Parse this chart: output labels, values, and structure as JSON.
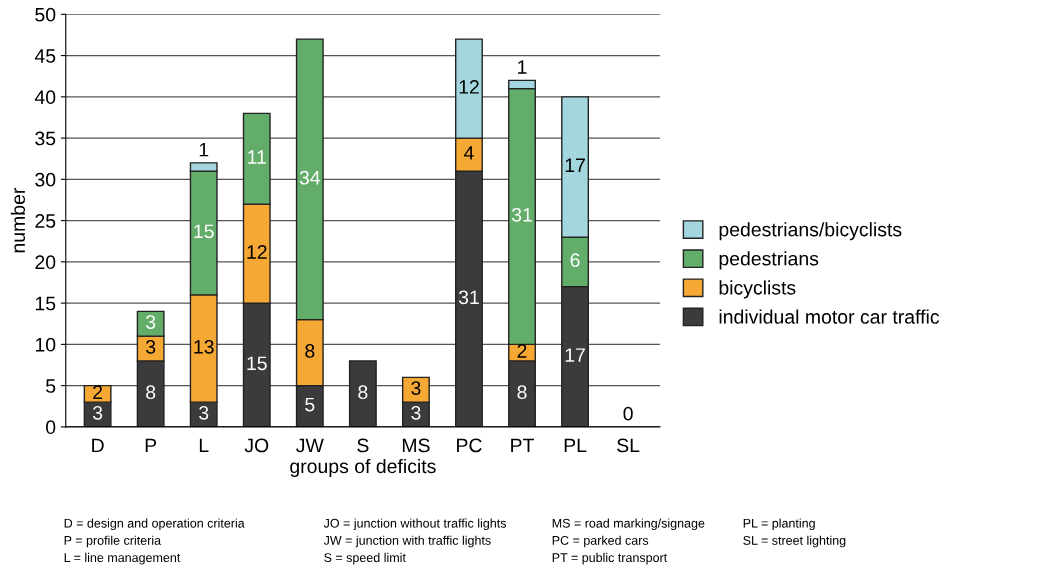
{
  "chart_data": {
    "type": "bar",
    "stacked": true,
    "xlabel": "groups of deficits",
    "ylabel": "number",
    "categories": [
      "D",
      "P",
      "L",
      "JO",
      "JW",
      "S",
      "MS",
      "PC",
      "PT",
      "PL",
      "SL"
    ],
    "series": [
      {
        "name": "individual motor car traffic",
        "color": "#3b3b3d",
        "values": [
          3,
          8,
          3,
          15,
          5,
          8,
          3,
          31,
          8,
          17,
          0
        ],
        "value_labels": [
          "3",
          "8",
          "3",
          "15",
          "5",
          "8",
          "3",
          "31",
          "8",
          "17",
          "0"
        ]
      },
      {
        "name": "bicyclists",
        "color": "#f5a833",
        "values": [
          2,
          3,
          13,
          12,
          8,
          0,
          3,
          4,
          2,
          0,
          0
        ],
        "value_labels": [
          "2",
          "3",
          "13",
          "12",
          "8",
          null,
          "3",
          "4",
          "2",
          null,
          null
        ]
      },
      {
        "name": "pedestrians",
        "color": "#62ad6a",
        "values": [
          0,
          3,
          15,
          11,
          34,
          0,
          0,
          0,
          31,
          6,
          0
        ],
        "value_labels": [
          null,
          "3",
          "15",
          "11",
          "34",
          null,
          null,
          null,
          "31",
          "6",
          null
        ]
      },
      {
        "name": "pedestrians/bicyclists",
        "color": "#a3d6de",
        "values": [
          0,
          0,
          1,
          0,
          0,
          0,
          0,
          12,
          1,
          17,
          0
        ],
        "value_labels": [
          null,
          null,
          "1",
          null,
          null,
          null,
          null,
          "12",
          "1",
          "17",
          null
        ]
      }
    ],
    "ylim": [
      0,
      50
    ],
    "yticks": [
      0,
      5,
      10,
      15,
      20,
      25,
      30,
      35,
      40,
      45,
      50
    ],
    "grid": "y",
    "legend": "right",
    "annotations": [
      "D = design and operation criteria",
      "P = profile criteria",
      "L = line management",
      "JO = junction without traffic lights",
      "JW = junction with traffic lights",
      "S = speed limit",
      "MS = road marking/signage",
      "PC = parked cars",
      "PT = public transport",
      "PL = planting",
      "SL = street lighting"
    ]
  }
}
